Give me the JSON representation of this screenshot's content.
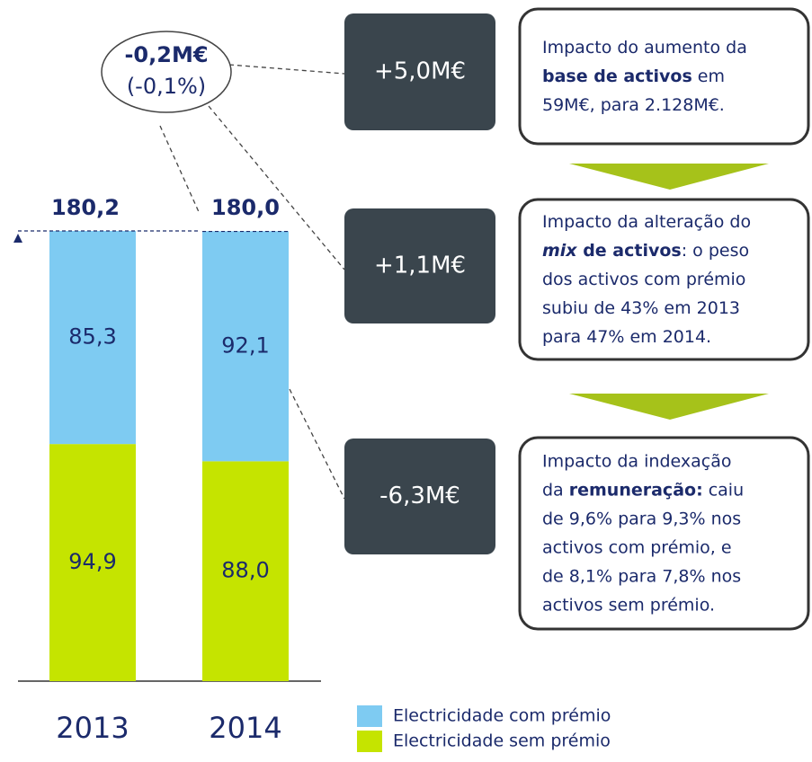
{
  "chart_data": {
    "type": "stacked_bar",
    "categories": [
      "2013",
      "2014"
    ],
    "series": [
      {
        "name": "Electricidade sem prémio",
        "color": "#c5e400",
        "values": [
          94.9,
          88.0
        ],
        "value_labels": [
          "94,9",
          "88,0"
        ]
      },
      {
        "name": "Electricidade com prémio",
        "color": "#7ecbf2",
        "values": [
          85.3,
          92.1
        ],
        "value_labels": [
          "85,3",
          "92,1"
        ]
      }
    ],
    "totals": {
      "values": [
        180.2,
        180.0
      ],
      "value_labels": [
        "180,2",
        "180,0"
      ]
    },
    "change": {
      "amount": "-0,2M€",
      "percent": "(-0,1%)"
    },
    "notes": [
      {
        "delta": "+5,0M€",
        "lines": [
          [
            {
              "text": "Impacto do aumento da"
            }
          ],
          [
            {
              "text": "base de activos",
              "style": "bold"
            },
            {
              "text": " em"
            }
          ],
          [
            {
              "text": "59M€, para 2.128M€."
            }
          ]
        ]
      },
      {
        "delta": "+1,1M€",
        "lines": [
          [
            {
              "text": "Impacto da alteração do"
            }
          ],
          [
            {
              "text": "mix",
              "style": "bold-italic"
            },
            {
              "text": " de activos",
              "style": "bold"
            },
            {
              "text": ": o peso"
            }
          ],
          [
            {
              "text": "dos activos com prémio"
            }
          ],
          [
            {
              "text": "subiu de 43% em 2013"
            }
          ],
          [
            {
              "text": "para 47% em 2014."
            }
          ]
        ]
      },
      {
        "delta": "-6,3M€",
        "lines": [
          [
            {
              "text": "Impacto da indexação"
            }
          ],
          [
            {
              "text": "da "
            },
            {
              "text": "remuneração:",
              "style": "bold"
            },
            {
              "text": " caiu"
            }
          ],
          [
            {
              "text": "de 9,6% para 9,3% nos"
            }
          ],
          [
            {
              "text": "activos com prémio, e"
            }
          ],
          [
            {
              "text": "de 8,1% para 7,8% nos"
            }
          ],
          [
            {
              "text": "activos sem prémio."
            }
          ]
        ]
      }
    ]
  }
}
